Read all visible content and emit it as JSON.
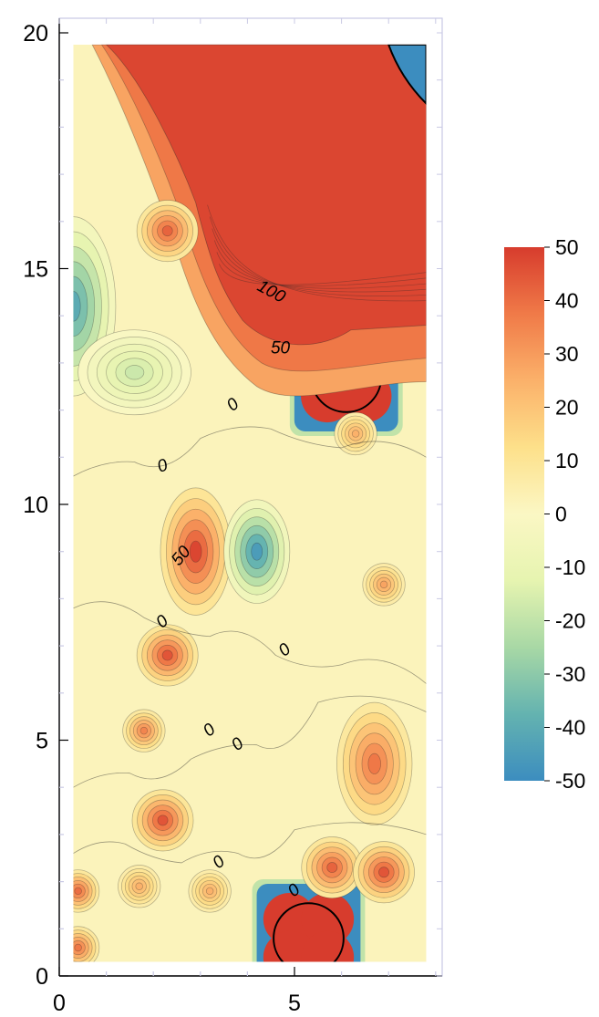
{
  "chart_data": {
    "type": "heatmap",
    "title": "",
    "xlabel": "",
    "ylabel": "",
    "xlim": [
      0,
      8.3
    ],
    "ylim": [
      0,
      20
    ],
    "data_extent": {
      "x": [
        0.3,
        7.8
      ],
      "y": [
        0.3,
        19.75
      ]
    },
    "x_ticks": [
      {
        "value": 0,
        "label": "0"
      },
      {
        "value": 5,
        "label": "5"
      }
    ],
    "y_ticks": [
      {
        "value": 0,
        "label": "0"
      },
      {
        "value": 5,
        "label": "5"
      },
      {
        "value": 10,
        "label": "10"
      },
      {
        "value": 15,
        "label": "15"
      },
      {
        "value": 20,
        "label": "20"
      }
    ],
    "colorbar": {
      "min": -50,
      "max": 50,
      "ticks": [
        {
          "value": 50,
          "label": "50"
        },
        {
          "value": 40,
          "label": "40"
        },
        {
          "value": 30,
          "label": "30"
        },
        {
          "value": 20,
          "label": "20"
        },
        {
          "value": 10,
          "label": "10"
        },
        {
          "value": 0,
          "label": "0"
        },
        {
          "value": -10,
          "label": "-10"
        },
        {
          "value": -20,
          "label": "-20"
        },
        {
          "value": -30,
          "label": "-30"
        },
        {
          "value": -40,
          "label": "-40"
        },
        {
          "value": -50,
          "label": "-50"
        }
      ],
      "colors": [
        "#3c8dbf",
        "#64b3b0",
        "#a8d8a5",
        "#e6f4b0",
        "#fbf7c4",
        "#fde08a",
        "#fbb16a",
        "#f07a48",
        "#d73c2d"
      ]
    },
    "background_value": 2,
    "features": [
      {
        "x": 5.8,
        "y": 17.2,
        "value": 50,
        "kind": "block"
      },
      {
        "x": 6.1,
        "y": 12.7,
        "value": 50,
        "kind": "block"
      },
      {
        "x": 5.3,
        "y": 0.8,
        "value": 50,
        "kind": "block"
      },
      {
        "x": 4.0,
        "y": 15.5,
        "value": 48,
        "kind": "region"
      },
      {
        "x": 2.9,
        "y": 9.0,
        "value": 48,
        "kind": "anomaly"
      },
      {
        "x": 4.2,
        "y": 9.0,
        "value": -45,
        "kind": "anomaly"
      },
      {
        "x": 0.3,
        "y": 14.2,
        "value": -40,
        "kind": "anomaly"
      },
      {
        "x": 1.6,
        "y": 12.8,
        "value": -18,
        "kind": "anomaly"
      },
      {
        "x": 2.3,
        "y": 15.8,
        "value": 42,
        "kind": "anomaly"
      },
      {
        "x": 2.3,
        "y": 6.8,
        "value": 45,
        "kind": "anomaly"
      },
      {
        "x": 1.8,
        "y": 5.2,
        "value": 35,
        "kind": "anomaly"
      },
      {
        "x": 2.2,
        "y": 3.3,
        "value": 45,
        "kind": "anomaly"
      },
      {
        "x": 6.7,
        "y": 4.5,
        "value": 38,
        "kind": "anomaly"
      },
      {
        "x": 6.9,
        "y": 8.3,
        "value": 28,
        "kind": "anomaly"
      },
      {
        "x": 5.8,
        "y": 2.3,
        "value": 42,
        "kind": "anomaly"
      },
      {
        "x": 6.9,
        "y": 2.2,
        "value": 45,
        "kind": "anomaly"
      },
      {
        "x": 0.4,
        "y": 1.8,
        "value": 40,
        "kind": "anomaly"
      },
      {
        "x": 0.4,
        "y": 0.6,
        "value": 38,
        "kind": "anomaly"
      },
      {
        "x": 1.7,
        "y": 1.9,
        "value": 25,
        "kind": "anomaly"
      },
      {
        "x": 3.2,
        "y": 1.8,
        "value": 25,
        "kind": "anomaly"
      },
      {
        "x": 6.3,
        "y": 11.5,
        "value": 25,
        "kind": "anomaly"
      }
    ],
    "contour_labels": [
      {
        "text": "100",
        "x": 4.5,
        "y": 14.5,
        "angle": 28
      },
      {
        "text": "50",
        "x": 4.7,
        "y": 13.3,
        "angle": 0
      },
      {
        "text": "0",
        "x": 3.7,
        "y": 12.1,
        "angle": -40
      },
      {
        "text": "0",
        "x": 2.2,
        "y": 10.8,
        "angle": -20
      },
      {
        "text": "50",
        "x": 2.6,
        "y": 8.9,
        "angle": -50
      },
      {
        "text": "0",
        "x": 2.2,
        "y": 7.5,
        "angle": -40
      },
      {
        "text": "0",
        "x": 4.8,
        "y": 6.9,
        "angle": -40
      },
      {
        "text": "0",
        "x": 3.2,
        "y": 5.2,
        "angle": -40
      },
      {
        "text": "0",
        "x": 3.8,
        "y": 4.9,
        "angle": -40
      },
      {
        "text": "0",
        "x": 3.4,
        "y": 2.4,
        "angle": -40
      },
      {
        "text": "0",
        "x": 5.0,
        "y": 1.8,
        "angle": -40
      }
    ]
  }
}
